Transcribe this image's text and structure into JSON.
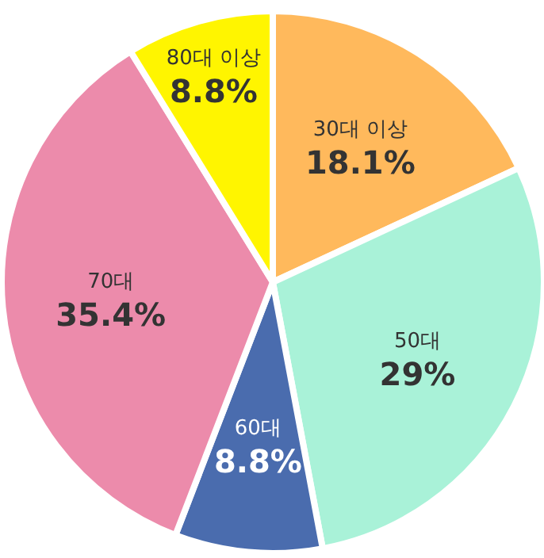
{
  "chart_data": {
    "type": "pie",
    "categories": [
      "30대 이상",
      "50대",
      "60대",
      "70대",
      "80대 이상"
    ],
    "values": [
      18.1,
      29,
      8.8,
      35.4,
      8.8
    ],
    "value_labels": [
      "18.1%",
      "29%",
      "8.8%",
      "35.4%",
      "8.8%"
    ],
    "colors": [
      "#ffb95c",
      "#a9f2d8",
      "#4a6cae",
      "#ec8bab",
      "#fff500"
    ]
  }
}
